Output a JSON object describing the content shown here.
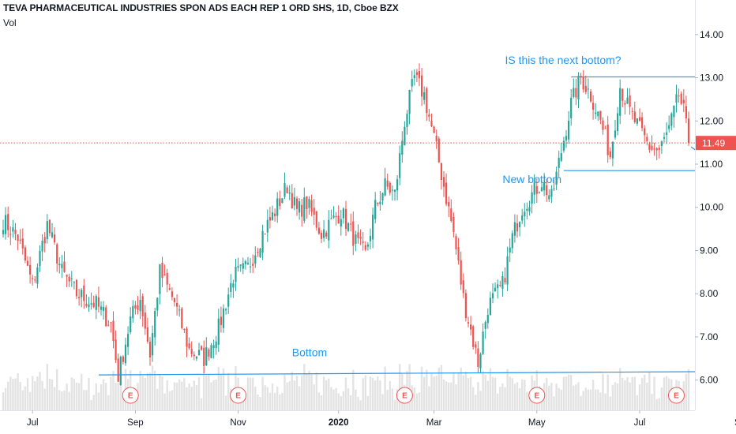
{
  "header": {
    "title": "TEVA PHARMACEUTICAL INDUSTRIES SPON ADS EACH REP 1 ORD SHS, 1D, Cboe BZX",
    "volume_label": "Vol"
  },
  "colors": {
    "up": "#26a69a",
    "down": "#ef5350",
    "drawing": "#2196f3",
    "price_line": "#ef5350",
    "volume": "#dcdcdc",
    "grid": "#ffffff",
    "axis_text": "#131722"
  },
  "chart_data": {
    "type": "candlestick",
    "symbol": "TEVA",
    "interval": "1D",
    "exchange": "Cboe BZX",
    "ylim": [
      5.3,
      14.8
    ],
    "y_ticks": [
      "6.00",
      "7.00",
      "8.00",
      "9.00",
      "10.00",
      "11.00",
      "12.00",
      "13.00",
      "14.00"
    ],
    "x_ticks": [
      {
        "label": "Jul",
        "bold": false,
        "bar": 12
      },
      {
        "label": "Sep",
        "bold": false,
        "bar": 54
      },
      {
        "label": "Nov",
        "bold": false,
        "bar": 96
      },
      {
        "label": "2020",
        "bold": true,
        "bar": 137
      },
      {
        "label": "Mar",
        "bold": false,
        "bar": 176
      },
      {
        "label": "May",
        "bold": false,
        "bar": 218
      },
      {
        "label": "Jul",
        "bold": false,
        "bar": 260
      },
      {
        "label": "Sep",
        "bold": false,
        "bar": 302
      }
    ],
    "last_price": "11.49",
    "last_price_value": 11.49,
    "anchors": [
      [
        0,
        9.7
      ],
      [
        6,
        9.3
      ],
      [
        12,
        8.2
      ],
      [
        18,
        9.6
      ],
      [
        24,
        8.5
      ],
      [
        30,
        8.0
      ],
      [
        38,
        7.75
      ],
      [
        44,
        7.3
      ],
      [
        47,
        6.1
      ],
      [
        52,
        7.4
      ],
      [
        56,
        7.9
      ],
      [
        60,
        6.6
      ],
      [
        64,
        8.5
      ],
      [
        70,
        7.8
      ],
      [
        76,
        6.7
      ],
      [
        82,
        6.5
      ],
      [
        88,
        7.2
      ],
      [
        94,
        8.4
      ],
      [
        100,
        8.6
      ],
      [
        106,
        9.4
      ],
      [
        110,
        9.8
      ],
      [
        116,
        10.5
      ],
      [
        120,
        9.9
      ],
      [
        124,
        10.1
      ],
      [
        130,
        9.4
      ],
      [
        138,
        9.9
      ],
      [
        144,
        9.2
      ],
      [
        148,
        8.9
      ],
      [
        152,
        10.0
      ],
      [
        156,
        10.5
      ],
      [
        160,
        10.3
      ],
      [
        164,
        12.0
      ],
      [
        168,
        13.0
      ],
      [
        172,
        12.6
      ],
      [
        176,
        11.6
      ],
      [
        180,
        10.5
      ],
      [
        184,
        9.4
      ],
      [
        188,
        7.9
      ],
      [
        192,
        6.9
      ],
      [
        194,
        6.4
      ],
      [
        198,
        7.7
      ],
      [
        204,
        8.2
      ],
      [
        208,
        9.3
      ],
      [
        212,
        10.0
      ],
      [
        216,
        10.3
      ],
      [
        220,
        10.6
      ],
      [
        224,
        10.2
      ],
      [
        228,
        11.3
      ],
      [
        232,
        12.4
      ],
      [
        236,
        13.0
      ],
      [
        240,
        12.6
      ],
      [
        244,
        12.0
      ],
      [
        248,
        11.2
      ],
      [
        252,
        12.8
      ],
      [
        256,
        12.2
      ],
      [
        260,
        11.8
      ],
      [
        264,
        11.4
      ],
      [
        268,
        11.3
      ],
      [
        272,
        11.8
      ],
      [
        276,
        12.6
      ],
      [
        278,
        12.2
      ],
      [
        280,
        11.49
      ]
    ],
    "earnings_bars": [
      52,
      96,
      164,
      218,
      275
    ],
    "earnings_label": "E",
    "annotations": {
      "bottom_label": "Bottom",
      "new_bottom_label": "New bottom",
      "question_label": "IS this the next bottom?"
    },
    "drawings": {
      "bottom_trendline": [
        [
          39,
          6.12
        ],
        [
          300,
          6.2
        ]
      ],
      "new_bottom_line": [
        [
          229,
          10.85
        ],
        [
          305,
          10.85
        ]
      ],
      "resistance_line": [
        [
          232,
          13.02
        ],
        [
          363,
          13.02
        ]
      ],
      "projection": [
        [
          281,
          11.4
        ],
        [
          294,
          10.87
        ],
        [
          305,
          13.02
        ],
        [
          311,
          12.55
        ],
        [
          328,
          14.55
        ]
      ]
    }
  }
}
